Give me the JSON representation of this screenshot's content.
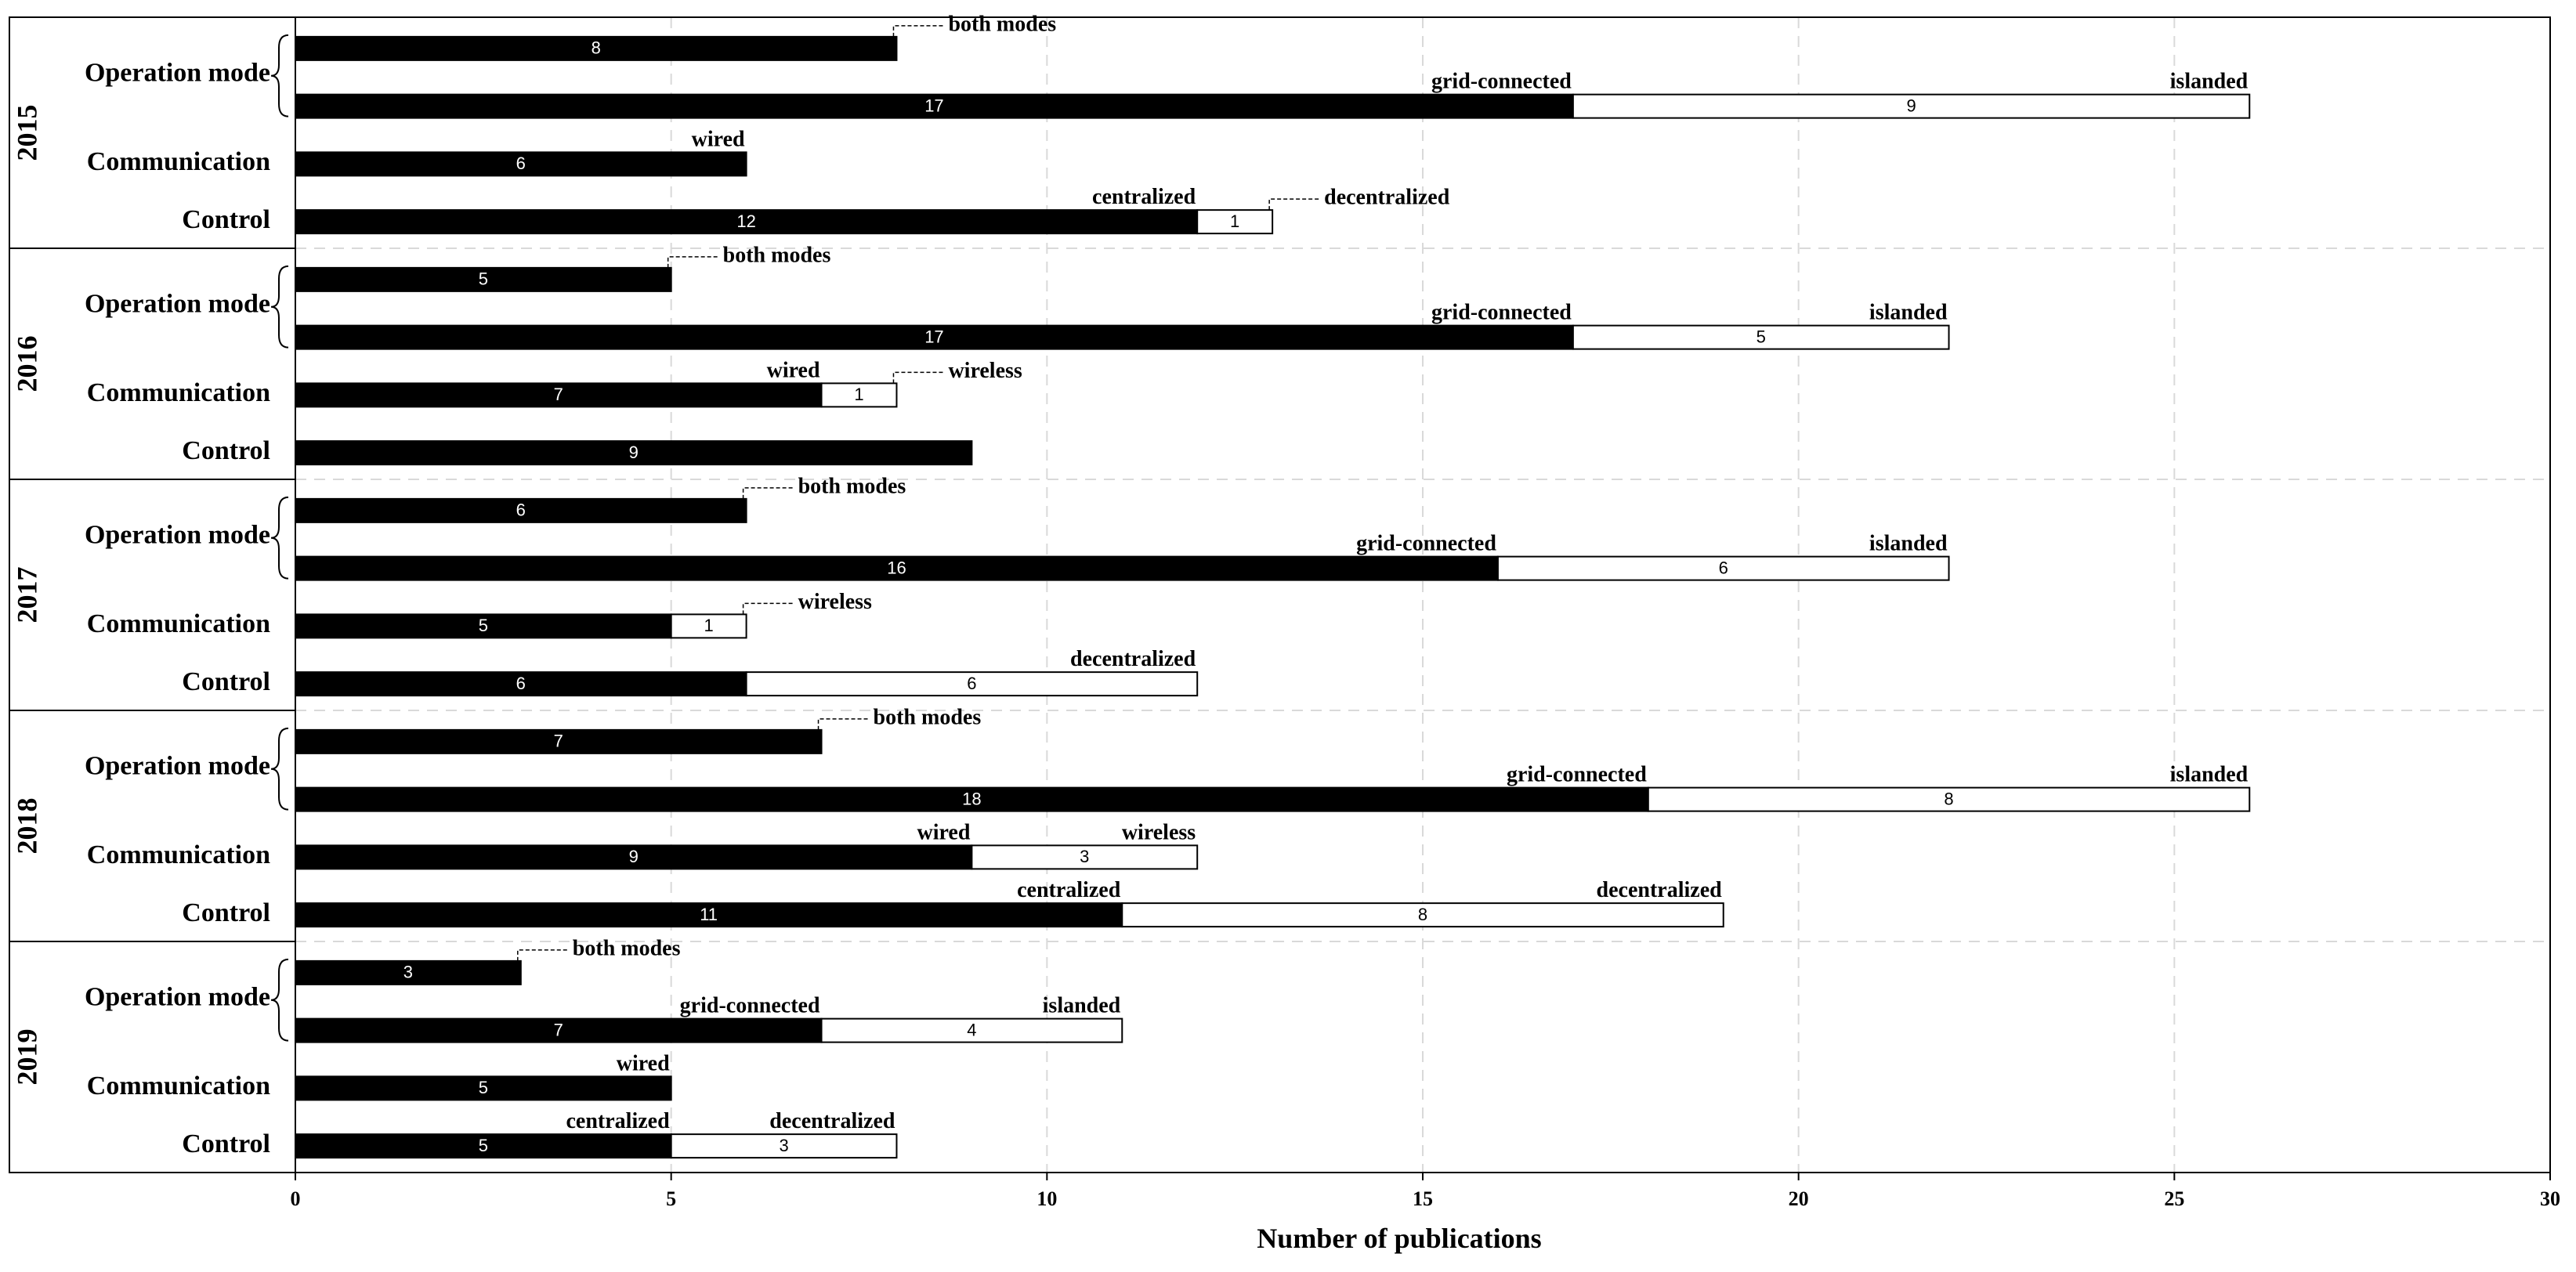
{
  "chart_data": {
    "type": "bar",
    "orientation": "horizontal",
    "stacked": true,
    "xlabel": "Number of publications",
    "xlim": [
      0,
      30
    ],
    "xticks": [
      0,
      5,
      10,
      15,
      20,
      25,
      30
    ],
    "grid": true,
    "colors": {
      "filled": "#000000",
      "hollow": "#ffffff",
      "grid": "#d9d9d9",
      "outline": "#000000"
    },
    "years": [
      {
        "year": "2015",
        "rows": [
          {
            "label": "Operation mode",
            "sub": "both",
            "segments": [
              {
                "value": 8,
                "fill": "black"
              }
            ],
            "annotations": [
              {
                "text": "both modes",
                "style": "leader"
              }
            ]
          },
          {
            "label": "",
            "sub": "split",
            "segments": [
              {
                "value": 17,
                "fill": "black"
              },
              {
                "value": 9,
                "fill": "white"
              }
            ],
            "annotations": [
              {
                "text": "grid-connected",
                "style": "above-first"
              },
              {
                "text": "islanded",
                "style": "above-end"
              }
            ]
          },
          {
            "label": "Communication",
            "segments": [
              {
                "value": 6,
                "fill": "black"
              }
            ],
            "annotations": [
              {
                "text": "wired",
                "style": "above-first"
              }
            ]
          },
          {
            "label": "Control",
            "segments": [
              {
                "value": 12,
                "fill": "black"
              },
              {
                "value": 1,
                "fill": "white"
              }
            ],
            "annotations": [
              {
                "text": "centralized",
                "style": "above-first"
              },
              {
                "text": "decentralized",
                "style": "leader"
              }
            ]
          }
        ]
      },
      {
        "year": "2016",
        "rows": [
          {
            "label": "Operation mode",
            "sub": "both",
            "segments": [
              {
                "value": 5,
                "fill": "black"
              }
            ],
            "annotations": [
              {
                "text": "both modes",
                "style": "leader"
              }
            ]
          },
          {
            "label": "",
            "sub": "split",
            "segments": [
              {
                "value": 17,
                "fill": "black"
              },
              {
                "value": 5,
                "fill": "white"
              }
            ],
            "annotations": [
              {
                "text": "grid-connected",
                "style": "above-first"
              },
              {
                "text": "islanded",
                "style": "above-end"
              }
            ]
          },
          {
            "label": "Communication",
            "segments": [
              {
                "value": 7,
                "fill": "black"
              },
              {
                "value": 1,
                "fill": "white"
              }
            ],
            "annotations": [
              {
                "text": "wired",
                "style": "above-first"
              },
              {
                "text": "wireless",
                "style": "leader"
              }
            ]
          },
          {
            "label": "Control",
            "segments": [
              {
                "value": 9,
                "fill": "black"
              }
            ],
            "annotations": []
          }
        ]
      },
      {
        "year": "2017",
        "rows": [
          {
            "label": "Operation mode",
            "sub": "both",
            "segments": [
              {
                "value": 6,
                "fill": "black"
              }
            ],
            "annotations": [
              {
                "text": "both modes",
                "style": "leader"
              }
            ]
          },
          {
            "label": "",
            "sub": "split",
            "segments": [
              {
                "value": 16,
                "fill": "black"
              },
              {
                "value": 6,
                "fill": "white"
              }
            ],
            "annotations": [
              {
                "text": "grid-connected",
                "style": "above-first"
              },
              {
                "text": "islanded",
                "style": "above-end"
              }
            ]
          },
          {
            "label": "Communication",
            "segments": [
              {
                "value": 5,
                "fill": "black"
              },
              {
                "value": 1,
                "fill": "white"
              }
            ],
            "annotations": [
              {
                "text": "wireless",
                "style": "leader"
              }
            ]
          },
          {
            "label": "Control",
            "segments": [
              {
                "value": 6,
                "fill": "black"
              },
              {
                "value": 6,
                "fill": "white"
              }
            ],
            "annotations": [
              {
                "text": "decentralized",
                "style": "above-end"
              }
            ]
          }
        ]
      },
      {
        "year": "2018",
        "rows": [
          {
            "label": "Operation mode",
            "sub": "both",
            "segments": [
              {
                "value": 7,
                "fill": "black"
              }
            ],
            "annotations": [
              {
                "text": "both modes",
                "style": "leader"
              }
            ]
          },
          {
            "label": "",
            "sub": "split",
            "segments": [
              {
                "value": 18,
                "fill": "black"
              },
              {
                "value": 8,
                "fill": "white"
              }
            ],
            "annotations": [
              {
                "text": "grid-connected",
                "style": "above-first"
              },
              {
                "text": "islanded",
                "style": "above-end"
              }
            ]
          },
          {
            "label": "Communication",
            "segments": [
              {
                "value": 9,
                "fill": "black"
              },
              {
                "value": 3,
                "fill": "white"
              }
            ],
            "annotations": [
              {
                "text": "wired",
                "style": "above-first"
              },
              {
                "text": "wireless",
                "style": "above-end"
              }
            ]
          },
          {
            "label": "Control",
            "segments": [
              {
                "value": 11,
                "fill": "black"
              },
              {
                "value": 8,
                "fill": "white"
              }
            ],
            "annotations": [
              {
                "text": "centralized",
                "style": "above-first"
              },
              {
                "text": "decentralized",
                "style": "above-end"
              }
            ]
          }
        ]
      },
      {
        "year": "2019",
        "rows": [
          {
            "label": "Operation mode",
            "sub": "both",
            "segments": [
              {
                "value": 3,
                "fill": "black"
              }
            ],
            "annotations": [
              {
                "text": "both modes",
                "style": "leader"
              }
            ]
          },
          {
            "label": "",
            "sub": "split",
            "segments": [
              {
                "value": 7,
                "fill": "black"
              },
              {
                "value": 4,
                "fill": "white"
              }
            ],
            "annotations": [
              {
                "text": "grid-connected",
                "style": "above-first"
              },
              {
                "text": "islanded",
                "style": "above-end"
              }
            ]
          },
          {
            "label": "Communication",
            "segments": [
              {
                "value": 5,
                "fill": "black"
              }
            ],
            "annotations": [
              {
                "text": "wired",
                "style": "above-first"
              }
            ]
          },
          {
            "label": "Control",
            "segments": [
              {
                "value": 5,
                "fill": "black"
              },
              {
                "value": 3,
                "fill": "white"
              }
            ],
            "annotations": [
              {
                "text": "centralized",
                "style": "above-first"
              },
              {
                "text": "decentralized",
                "style": "above-end"
              }
            ]
          }
        ]
      }
    ]
  }
}
